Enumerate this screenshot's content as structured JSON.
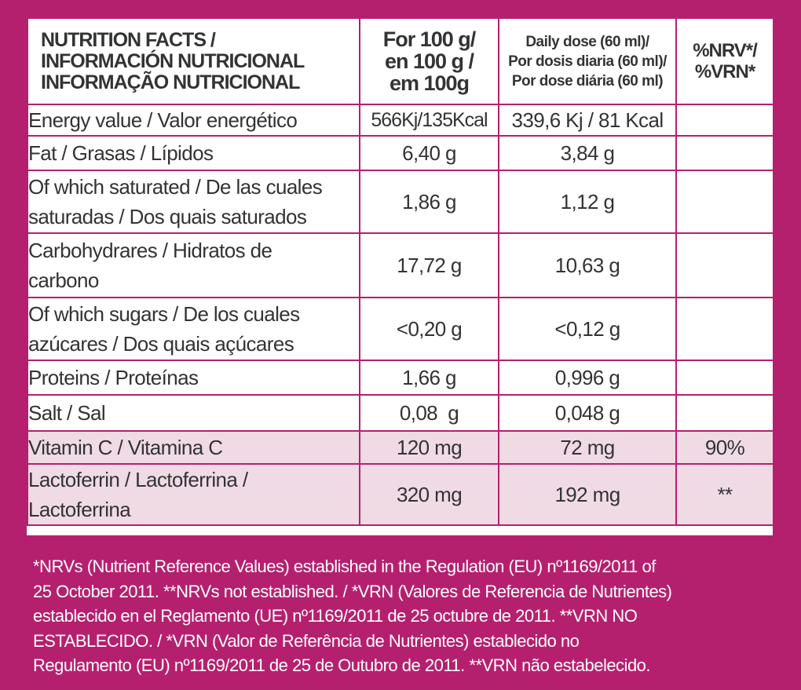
{
  "header": {
    "title_line1": "NUTRITION FACTS /",
    "title_line2": "INFORMACIÓN NUTRICIONAL",
    "title_line3": "INFORMAÇÃO NUTRICIONAL",
    "per100_line1": "For 100 g/",
    "per100_line2": "en 100 g /",
    "per100_line3": "em 100g",
    "daily_line1": "Daily dose (60 ml)/",
    "daily_line2": "Por dosis diaria (60 ml)/",
    "daily_line3": "Por dose diária (60 ml)",
    "nrv_line1": "%NRV*/",
    "nrv_line2": "%VRN*"
  },
  "rows": [
    {
      "label": "Energy value / Valor energético",
      "per100": "566Kj/135Kcal",
      "daily": "339,6 Kj / 81 Kcal",
      "nrv": ""
    },
    {
      "label": "Fat / Grasas / Lípidos",
      "per100": "6,40 g",
      "daily": "3,84 g",
      "nrv": ""
    },
    {
      "label": "Of which saturated / De las cuales\nsaturadas / Dos quais saturados",
      "per100": "1,86 g",
      "daily": "1,12 g",
      "nrv": ""
    },
    {
      "label": "Carbohydrares / Hidratos de\ncarbono",
      "per100": "17,72 g",
      "daily": "10,63 g",
      "nrv": ""
    },
    {
      "label": "Of which  sugars / De los cuales\nazúcares / Dos quais açúcares",
      "per100": "<0,20 g",
      "daily": "<0,12 g",
      "nrv": ""
    },
    {
      "label": "Proteins / Proteínas",
      "per100": "1,66 g",
      "daily": "0,996 g",
      "nrv": ""
    },
    {
      "label": "Salt / Sal",
      "per100": "0,08  g",
      "daily": "0,048 g",
      "nrv": ""
    },
    {
      "label": "Vitamin C / Vitamina C",
      "per100": "120 mg",
      "daily": "72 mg",
      "nrv": "90%"
    },
    {
      "label": "Lactoferrin / Lactoferrina /\nLactoferrina",
      "per100": "320 mg",
      "daily": "192 mg",
      "nrv": "**"
    }
  ],
  "footnote": {
    "line1": "*NRVs (Nutrient Reference Values) established in the Regulation (EU) nº1169/2011 of",
    "line2": "25 October 2011. **NRVs not established. / *VRN (Valores de Referencia de Nutrientes)",
    "line3": "establecido en el Reglamento (UE) nº1169/2011 de 25 octubre de 2011. **VRN NO",
    "line4": "ESTABLECIDO. / *VRN (Valor de Referência de Nutrientes) establecido no",
    "line5": "Regulamento (EU) nº1169/2011 de 25 de Outubro de 2011. **VRN não estabelecido."
  },
  "colors": {
    "background": "#b5206e",
    "header_text": "#b5206e",
    "body_text": "#333333",
    "highlight_row": "#f0dbe5"
  }
}
